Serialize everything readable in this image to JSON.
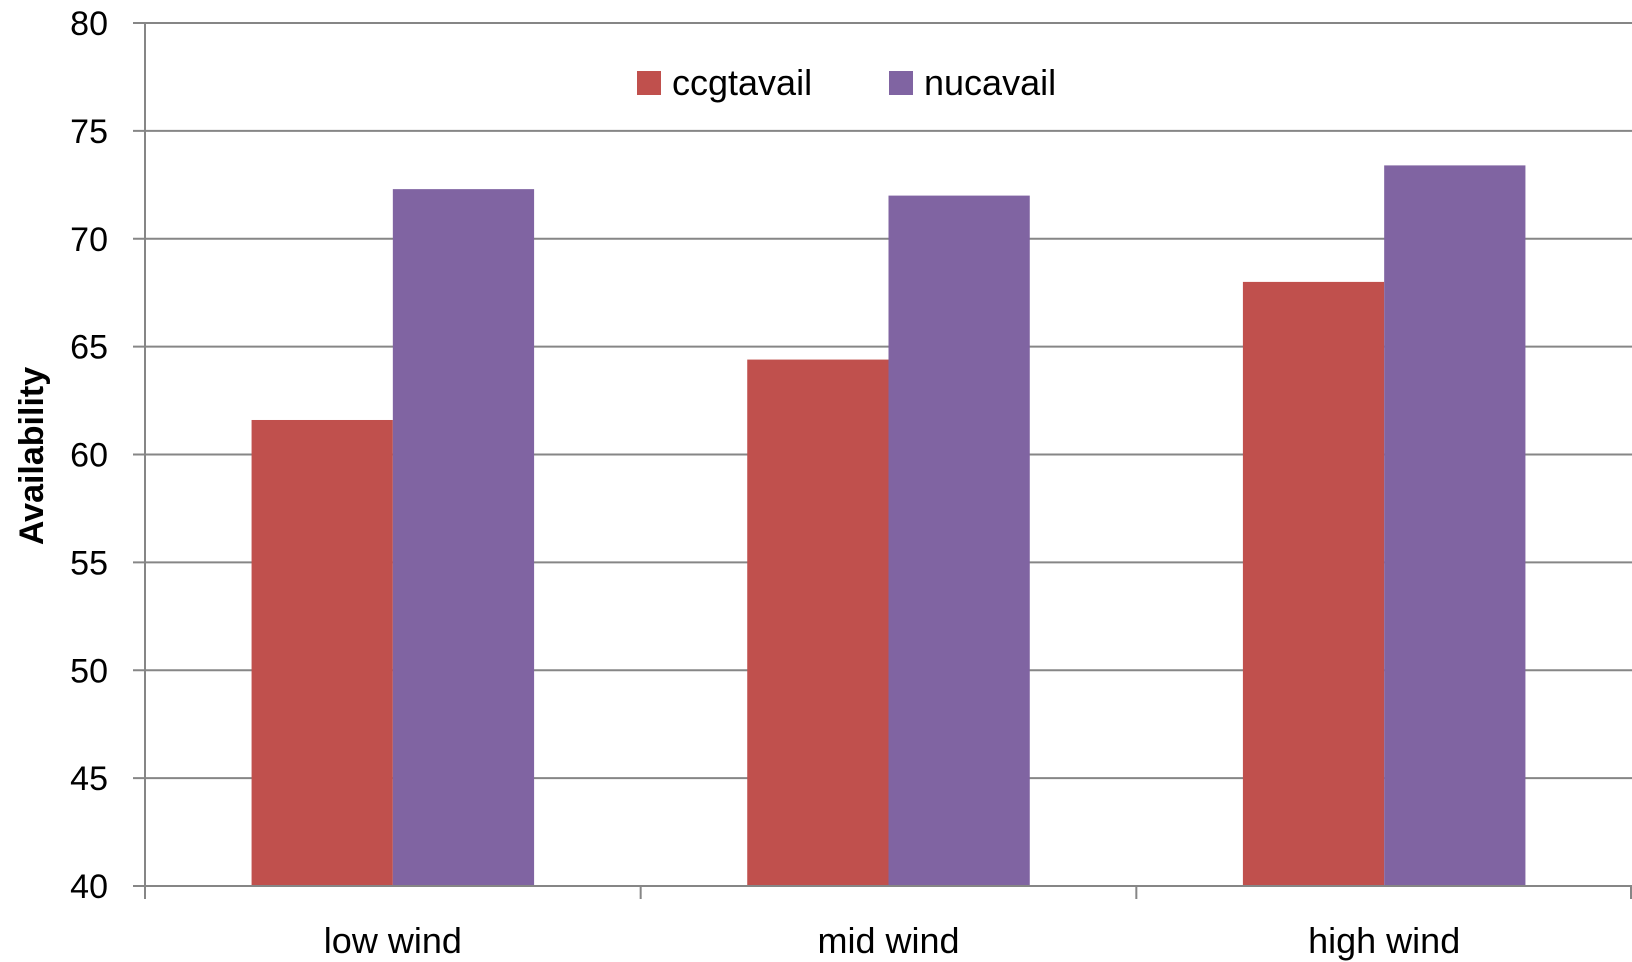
{
  "chart_data": {
    "type": "bar",
    "title": "",
    "xlabel": "",
    "ylabel": "Availability",
    "categories": [
      "low wind",
      "mid wind",
      "high wind"
    ],
    "series": [
      {
        "name": "ccgtavail",
        "color": "#c0504d",
        "values": [
          61.6,
          64.4,
          68.0
        ]
      },
      {
        "name": "nucavail",
        "color": "#8064a2",
        "values": [
          72.3,
          72.0,
          73.4
        ]
      }
    ],
    "ylim": [
      40,
      80
    ],
    "yticks": [
      40,
      45,
      50,
      55,
      60,
      65,
      70,
      75,
      80
    ],
    "grid": true,
    "legend_position": "top-center",
    "colors": {
      "gridline": "#868686",
      "axis": "#868686"
    }
  }
}
